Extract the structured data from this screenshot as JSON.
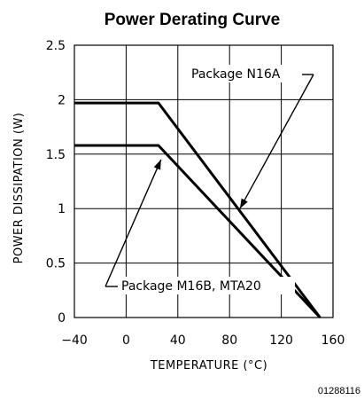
{
  "chart_data": {
    "type": "line",
    "title": "Power Derating Curve",
    "xlabel": "TEMPERATURE (°C)",
    "ylabel": "POWER DISSIPATION (W)",
    "xlim": [
      -40,
      160
    ],
    "ylim": [
      0,
      2.5
    ],
    "x_ticks": [
      -40,
      0,
      40,
      80,
      120,
      160
    ],
    "y_ticks": [
      0,
      0.5,
      1,
      1.5,
      2,
      2.5
    ],
    "x_tick_labels": [
      "−40",
      "0",
      "40",
      "80",
      "120",
      "160"
    ],
    "y_tick_labels": [
      "0",
      "0.5",
      "1",
      "1.5",
      "2",
      "2.5"
    ],
    "grid": true,
    "series": [
      {
        "name": "Package N16A",
        "x": [
          -40,
          25,
          150
        ],
        "y": [
          1.97,
          1.97,
          0
        ]
      },
      {
        "name": "Package M16B, MTA20",
        "x": [
          -40,
          25,
          150
        ],
        "y": [
          1.58,
          1.58,
          0
        ]
      }
    ],
    "annotations": [
      {
        "text": "Package N16A",
        "series": 0,
        "point": [
          88,
          1.0
        ]
      },
      {
        "text": "Package M16B, MTA20",
        "series": 1,
        "point": [
          27,
          1.45
        ]
      }
    ]
  },
  "figure_code": "01288116"
}
